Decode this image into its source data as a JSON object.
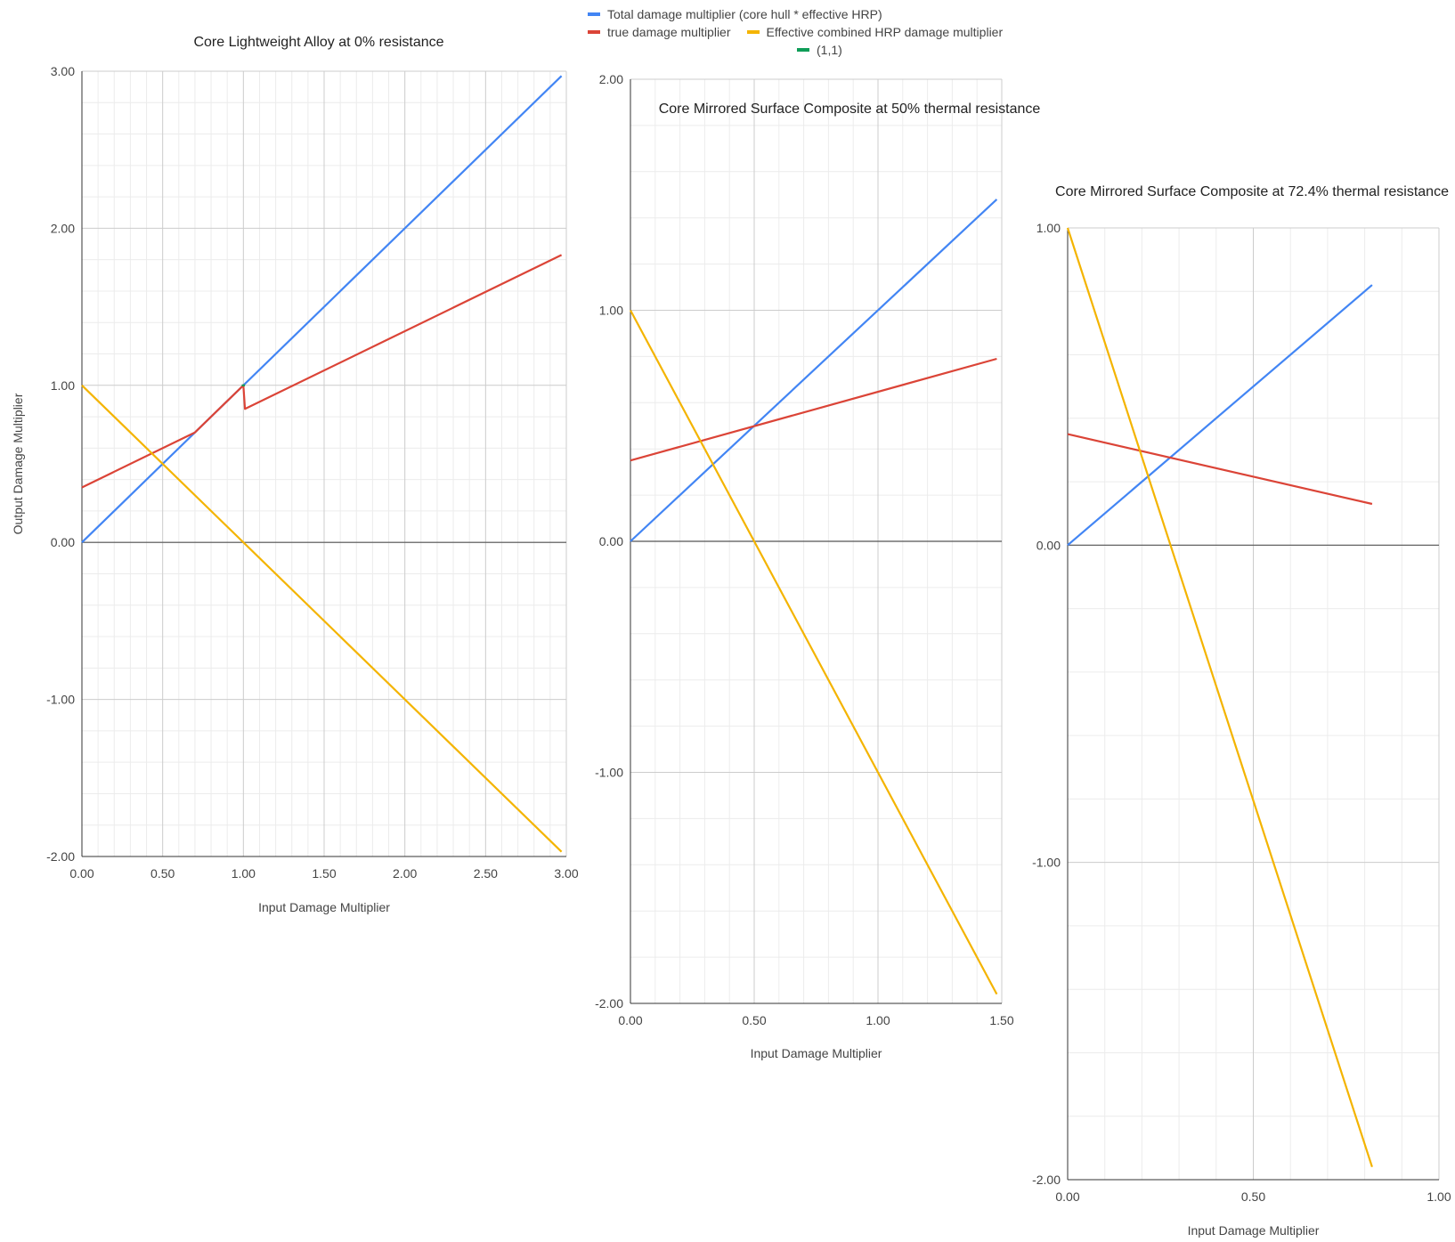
{
  "legend": [
    {
      "name": "Total damage multiplier (core hull * effective HRP)",
      "color": "#4285F4"
    },
    {
      "name": "true damage multiplier",
      "color": "#DB4437"
    },
    {
      "name": "Effective combined HRP damage multiplier",
      "color": "#F4B400"
    },
    {
      "name": "(1,1)",
      "color": "#0F9D58"
    }
  ],
  "chart_data": [
    {
      "type": "line",
      "title": "Core Lightweight Alloy at 0% resistance",
      "xlabel": "Input Damage Multiplier",
      "ylabel": "Output Damage Multiplier",
      "xlim": [
        0,
        3
      ],
      "ylim": [
        -2,
        3
      ],
      "x_ticks": [
        "0.00",
        "0.50",
        "1.00",
        "1.50",
        "2.00",
        "2.50",
        "3.00"
      ],
      "y_ticks": [
        "-2.00",
        "-1.00",
        "0.00",
        "1.00",
        "2.00",
        "3.00"
      ],
      "grid": true,
      "series": [
        {
          "name": "Total damage multiplier (core hull * effective HRP)",
          "color": "#4285F4",
          "points": [
            [
              0,
              0
            ],
            [
              2.97,
              2.97
            ]
          ]
        },
        {
          "name": "true damage multiplier",
          "color": "#DB4437",
          "points": [
            [
              0,
              0.35
            ],
            [
              0.7,
              0.7
            ],
            [
              1.0,
              1.0
            ],
            [
              1.01,
              0.85
            ],
            [
              2.97,
              1.83
            ]
          ]
        },
        {
          "name": "Effective combined HRP damage multiplier",
          "color": "#F4B400",
          "points": [
            [
              0,
              1.0
            ],
            [
              2.97,
              -1.97
            ]
          ]
        },
        {
          "name": "(1,1)",
          "color": "#0F9D58",
          "points": [
            [
              0.99,
              1.0
            ],
            [
              1.01,
              1.0
            ]
          ]
        }
      ]
    },
    {
      "type": "line",
      "title": "Core Mirrored Surface Composite at 50% thermal resistance",
      "xlabel": "Input Damage Multiplier",
      "ylabel": "",
      "xlim": [
        0,
        1.5
      ],
      "ylim": [
        -2,
        2
      ],
      "x_ticks": [
        "0.00",
        "0.50",
        "1.00",
        "1.50"
      ],
      "y_ticks": [
        "-2.00",
        "-1.00",
        "0.00",
        "1.00",
        "2.00"
      ],
      "grid": true,
      "series": [
        {
          "name": "Total damage multiplier (core hull * effective HRP)",
          "color": "#4285F4",
          "points": [
            [
              0,
              0
            ],
            [
              1.48,
              1.48
            ]
          ]
        },
        {
          "name": "true damage multiplier",
          "color": "#DB4437",
          "points": [
            [
              0,
              0.35
            ],
            [
              1.48,
              0.79
            ]
          ]
        },
        {
          "name": "Effective combined HRP damage multiplier",
          "color": "#F4B400",
          "points": [
            [
              0,
              1.0
            ],
            [
              1.48,
              -1.96
            ]
          ]
        }
      ]
    },
    {
      "type": "line",
      "title": "Core Mirrored Surface Composite at 72.4% thermal resistance",
      "xlabel": "Input Damage Multiplier",
      "ylabel": "",
      "xlim": [
        0,
        1
      ],
      "ylim": [
        -2,
        1
      ],
      "x_ticks": [
        "0.00",
        "0.50",
        "1.00"
      ],
      "y_ticks": [
        "-2.00",
        "-1.00",
        "0.00",
        "1.00"
      ],
      "grid": true,
      "series": [
        {
          "name": "Total damage multiplier (core hull * effective HRP)",
          "color": "#4285F4",
          "points": [
            [
              0,
              0
            ],
            [
              0.82,
              0.82
            ]
          ]
        },
        {
          "name": "true damage multiplier",
          "color": "#DB4437",
          "points": [
            [
              0,
              0.35
            ],
            [
              0.82,
              0.13
            ]
          ]
        },
        {
          "name": "Effective combined HRP damage multiplier",
          "color": "#F4B400",
          "points": [
            [
              0,
              1.0
            ],
            [
              0.82,
              -1.96
            ]
          ]
        }
      ]
    }
  ]
}
